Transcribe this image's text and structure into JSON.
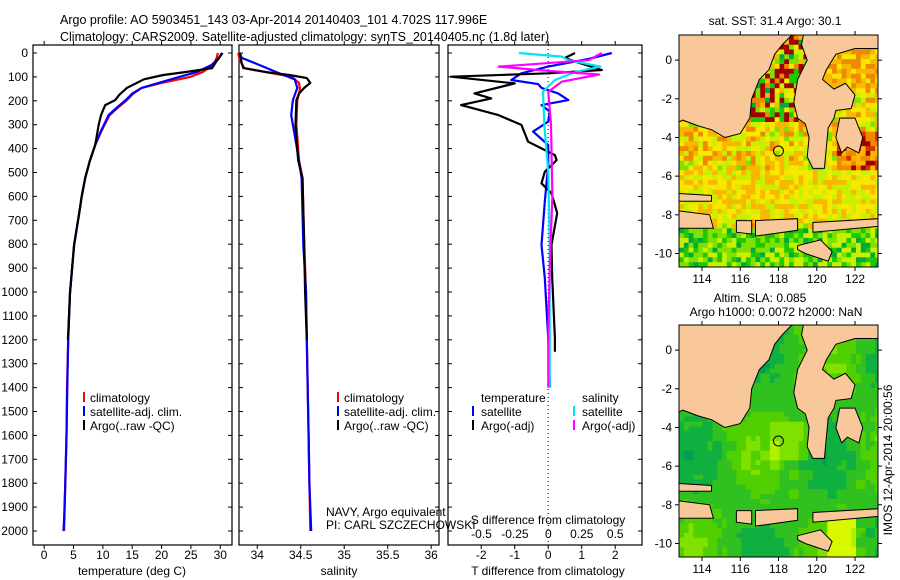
{
  "title": {
    "line1": "Argo profile: AO 5903451_143 03-Apr-2014 20140403_101 4.702S 117.996E",
    "line2": "Climatology: CARS2009. Satellite-adjusted climatology: synTS_20140405.nc (1.8d later)"
  },
  "credit": {
    "line1": "NAVY, Argo equivalent",
    "line2": "PI: CARL SZCZECHOWSKI"
  },
  "footer": {
    "stamp": "IMOS 12-Apr-2014 20:00:56"
  },
  "colors": {
    "climatology": "#ff0000",
    "satellite": "#0000ff",
    "argo": "#000000",
    "salinity_satellite": "#00e5ee",
    "salinity_argo": "#ff00ff",
    "land": "#f8c89a"
  },
  "chart_data": [
    {
      "type": "line",
      "id": "temperature",
      "xlabel": "temperature (deg C)",
      "ylabel": "depth",
      "xlim": [
        -1.9,
        32
      ],
      "ylim": [
        2060,
        0
      ],
      "xticks": [
        0,
        5,
        10,
        15,
        20,
        25,
        30
      ],
      "yticks": [
        0,
        100,
        200,
        300,
        400,
        500,
        600,
        700,
        800,
        900,
        1000,
        1100,
        1200,
        1300,
        1400,
        1500,
        1600,
        1700,
        1800,
        1900,
        2000
      ],
      "legend": [
        "climatology",
        "satellite-adj. clim.",
        "Argo(..raw -QC)"
      ],
      "series": [
        {
          "name": "climatology",
          "color": "#ff0000",
          "depth": [
            0,
            20,
            50,
            80,
            100,
            125,
            146,
            170,
            197,
            230,
            259,
            300,
            330,
            385,
            450,
            523,
            600,
            665,
            803,
            1004,
            1200,
            1400,
            1600,
            1800,
            2000
          ],
          "values": [
            29.6,
            29.4,
            28.8,
            27,
            24.9,
            20,
            16.6,
            15.2,
            14.1,
            12.5,
            11.2,
            10.3,
            9.7,
            8.7,
            7.8,
            7.0,
            6.4,
            6.0,
            5.1,
            4.4,
            4.1,
            3.9,
            3.8,
            3.6,
            3.4
          ]
        },
        {
          "name": "satellite-adj. clim.",
          "color": "#0000ff",
          "depth": [
            0,
            20,
            50,
            80,
            100,
            125,
            146,
            170,
            197,
            230,
            259,
            300,
            330,
            385,
            450,
            523,
            600,
            665,
            803,
            1004,
            1200,
            1400,
            1600,
            1800,
            1950,
            2000
          ],
          "values": [
            30.4,
            29.8,
            28.5,
            26,
            23,
            19.5,
            16.6,
            15,
            13.9,
            12.3,
            11.0,
            10.2,
            9.6,
            8.7,
            7.8,
            7.0,
            6.4,
            6.0,
            5.1,
            4.4,
            4.1,
            3.95,
            3.8,
            3.6,
            3.4,
            3.3
          ]
        },
        {
          "name": "Argo(..raw -QC)",
          "color": "#000000",
          "depth": [
            0,
            20,
            40,
            63,
            80,
            92,
            110,
            146,
            175,
            197,
            218,
            259,
            300,
            385,
            450,
            523,
            600,
            665,
            803,
            1004,
            1200
          ],
          "values": [
            30.3,
            29.8,
            29.2,
            28.6,
            24,
            20.3,
            17,
            14.1,
            12.8,
            12.1,
            10.4,
            9.7,
            9.3,
            8.7,
            7.8,
            7.0,
            6.4,
            6.0,
            5.1,
            4.4,
            4.05
          ]
        }
      ]
    },
    {
      "type": "line",
      "id": "salinity",
      "xlabel": "salinity",
      "xlim": [
        33.79,
        36.09
      ],
      "ylim": [
        2060,
        0
      ],
      "xticks": [
        34,
        34.5,
        35,
        35.5,
        36
      ],
      "legend": [
        "climatology",
        "satellite-adj. clim.",
        "Argo(..raw -QC)"
      ],
      "series": [
        {
          "name": "climatology",
          "color": "#ff0000",
          "depth": [
            0,
            30,
            63,
            80,
            100,
            125,
            150,
            200,
            300,
            448,
            523,
            800,
            1000,
            1200,
            1400,
            1600,
            1800,
            2000
          ],
          "values": [
            33.78,
            33.8,
            33.85,
            34.1,
            34.4,
            34.48,
            34.49,
            34.46,
            34.45,
            34.48,
            34.52,
            34.54,
            34.56,
            34.57,
            34.58,
            34.59,
            34.6,
            34.61
          ]
        },
        {
          "name": "satellite-adj. clim.",
          "color": "#0000ff",
          "depth": [
            0,
            20,
            57,
            80,
            110,
            146,
            197,
            260,
            385,
            523,
            800,
            1000,
            1200,
            1400,
            1600,
            1800,
            2000
          ],
          "values": [
            33.8,
            33.82,
            34.07,
            34.22,
            34.43,
            34.46,
            34.41,
            34.39,
            34.45,
            34.51,
            34.53,
            34.56,
            34.57,
            34.58,
            34.59,
            34.6,
            34.62
          ]
        },
        {
          "name": "Argo(..raw -QC)",
          "color": "#000000",
          "depth": [
            0,
            40,
            63,
            80,
            92,
            105,
            125,
            146,
            170,
            197,
            300,
            448,
            523,
            800,
            1000,
            1200
          ],
          "values": [
            33.8,
            33.82,
            33.84,
            34.1,
            34.37,
            34.57,
            34.61,
            34.54,
            34.48,
            34.45,
            34.44,
            34.47,
            34.52,
            34.54,
            34.55,
            34.57
          ]
        }
      ]
    },
    {
      "type": "line",
      "id": "difference",
      "xlabel": "T difference from climatology",
      "x2label": "S difference from climatology",
      "xlim": [
        -2.99,
        2.8
      ],
      "x2lim": [
        -0.75,
        0.7
      ],
      "ylim": [
        2060,
        0
      ],
      "xticks": [
        -2,
        -1,
        0,
        1,
        2
      ],
      "x2ticks": [
        -0.5,
        -0.25,
        0,
        0.25,
        0.5
      ],
      "legend_headers": [
        "temperature",
        "salinity"
      ],
      "series": [
        {
          "name": "satellite",
          "group": "temperature",
          "axis": "T",
          "color": "#0000ff",
          "depth": [
            0,
            25,
            57,
            85,
            113,
            130,
            146,
            169,
            197,
            218,
            245,
            287,
            329,
            385,
            469,
            622,
            803,
            941,
            1192,
            1400
          ],
          "values": [
            1.9,
            1.2,
            0,
            -0.8,
            -1.1,
            -0.3,
            -0.2,
            0.3,
            0.6,
            -0.2,
            0.05,
            0,
            -0.45,
            0,
            0,
            -0.1,
            -0.2,
            -0.1,
            0,
            0.05
          ]
        },
        {
          "name": "Argo(-adj)",
          "group": "temperature",
          "axis": "T",
          "color": "#000000",
          "depth": [
            0,
            21,
            40,
            71,
            85,
            99,
            127,
            169,
            190,
            218,
            259,
            301,
            371,
            427,
            448,
            497,
            545,
            587,
            670,
            803,
            941,
            1192,
            1250
          ],
          "values": [
            0.8,
            0.5,
            0.9,
            1.6,
            0,
            -2.9,
            -1.0,
            -2.2,
            -1.7,
            -2.6,
            -1.5,
            -0.8,
            -0.6,
            0.2,
            0.25,
            -0.1,
            -0.2,
            0.1,
            0.27,
            0.1,
            0.12,
            0.2,
            0.2
          ]
        },
        {
          "name": "satellite",
          "group": "salinity",
          "axis": "S",
          "color": "#00e5ee",
          "depth": [
            0,
            15,
            30,
            57,
            80,
            113,
            162,
            300,
            500,
            800,
            1192,
            1400
          ],
          "values": [
            -0.22,
            0.1,
            0.15,
            0.39,
            0.2,
            0.05,
            -0.04,
            -0.03,
            0,
            0.01,
            0.01,
            0.01
          ]
        },
        {
          "name": "Argo(-adj)",
          "group": "salinity",
          "axis": "S",
          "color": "#ff00ff",
          "depth": [
            0,
            15,
            30,
            57,
            75,
            90,
            120,
            162,
            300,
            600,
            900,
            1192,
            1400
          ],
          "values": [
            0.4,
            0.35,
            0.3,
            -0.37,
            0,
            0.38,
            0.1,
            0,
            0.02,
            0.03,
            0.01,
            0,
            0
          ]
        }
      ]
    },
    {
      "type": "heatmap",
      "id": "sst-map",
      "title": "sat. SST: 31.4 Argo: 30.1",
      "xlim": [
        112.8,
        123.2
      ],
      "ylim": [
        -10.7,
        1.3
      ],
      "xticks": [
        114,
        116,
        118,
        120,
        122
      ],
      "yticks": [
        0,
        -2,
        -4,
        -6,
        -8,
        -10
      ],
      "marker": {
        "lon": 117.996,
        "lat": -4.702
      }
    },
    {
      "type": "heatmap",
      "id": "sla-map",
      "title": "Altim. SLA: 0.085",
      "subtitle": "Argo h1000: 0.0072 h2000: NaN",
      "xlim": [
        112.8,
        123.2
      ],
      "ylim": [
        -10.7,
        1.3
      ],
      "xticks": [
        114,
        116,
        118,
        120,
        122
      ],
      "yticks": [
        0,
        -2,
        -4,
        -6,
        -8,
        -10
      ],
      "marker": {
        "lon": 117.996,
        "lat": -4.702
      }
    }
  ]
}
